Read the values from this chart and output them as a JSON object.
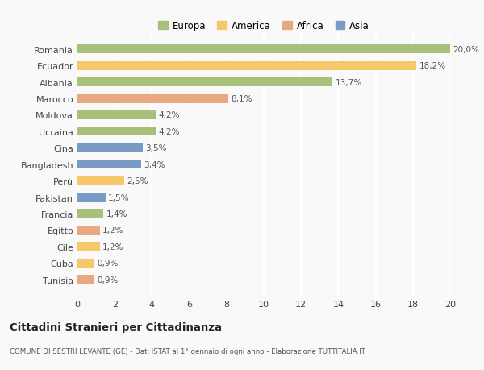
{
  "categories": [
    "Romania",
    "Ecuador",
    "Albania",
    "Marocco",
    "Moldova",
    "Ucraina",
    "Cina",
    "Bangladesh",
    "Perù",
    "Pakistan",
    "Francia",
    "Egitto",
    "Cile",
    "Cuba",
    "Tunisia"
  ],
  "values": [
    20.0,
    18.2,
    13.7,
    8.1,
    4.2,
    4.2,
    3.5,
    3.4,
    2.5,
    1.5,
    1.4,
    1.2,
    1.2,
    0.9,
    0.9
  ],
  "labels": [
    "20,0%",
    "18,2%",
    "13,7%",
    "8,1%",
    "4,2%",
    "4,2%",
    "3,5%",
    "3,4%",
    "2,5%",
    "1,5%",
    "1,4%",
    "1,2%",
    "1,2%",
    "0,9%",
    "0,9%"
  ],
  "colors": [
    "#a8c07a",
    "#f5c96a",
    "#a8c07a",
    "#e8a882",
    "#a8c07a",
    "#a8c07a",
    "#7a9bc4",
    "#7a9bc4",
    "#f5c96a",
    "#7a9bc4",
    "#a8c07a",
    "#e8a882",
    "#f5c96a",
    "#f5c96a",
    "#e8a882"
  ],
  "continent_colors": {
    "Europa": "#a8c07a",
    "America": "#f5c96a",
    "Africa": "#e8a882",
    "Asia": "#7a9bc4"
  },
  "xlim": [
    0,
    20
  ],
  "xticks": [
    0,
    2,
    4,
    6,
    8,
    10,
    12,
    14,
    16,
    18,
    20
  ],
  "title": "Cittadini Stranieri per Cittadinanza",
  "subtitle": "COMUNE DI SESTRI LEVANTE (GE) - Dati ISTAT al 1° gennaio di ogni anno - Elaborazione TUTTITALIA.IT",
  "background_color": "#f9f9f9",
  "grid_color": "#ffffff",
  "bar_height": 0.55
}
